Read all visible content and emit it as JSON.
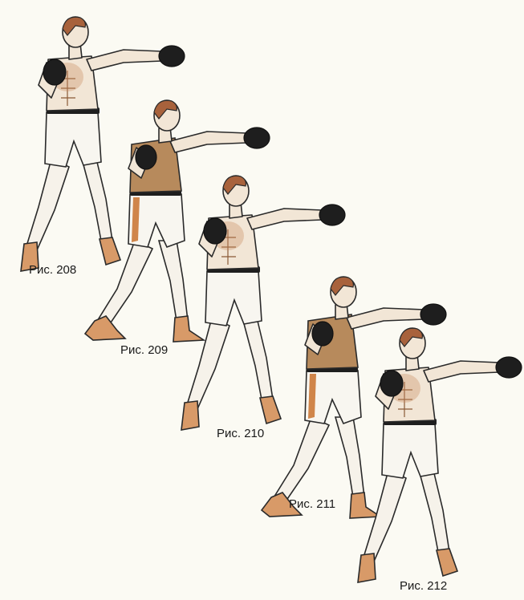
{
  "captions": [
    "Рис. 208",
    "Рис. 209",
    "Рис. 210",
    "Рис. 211",
    "Рис. 212"
  ]
}
